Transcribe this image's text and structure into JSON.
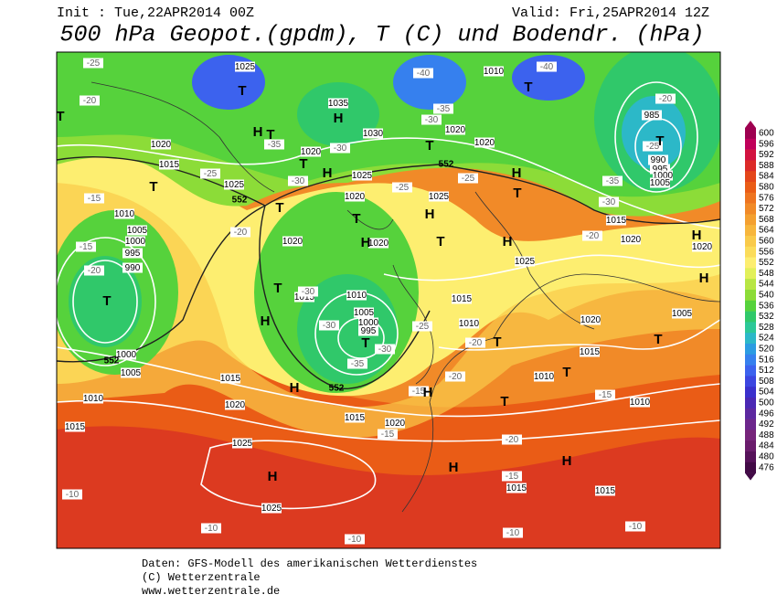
{
  "header": {
    "init": "Init : Tue,22APR2014 00Z",
    "valid": "Valid: Fri,25APR2014 12Z",
    "title": "500 hPa Geopot.(gpdm), T (C) und Bodendr. (hPa)"
  },
  "footer": {
    "source": "Daten: GFS-Modell des amerikanischen Wetterdienstes",
    "copyright": "(C) Wetterzentrale",
    "url": "www.wetterzentrale.de"
  },
  "colorbar": {
    "labels": [
      "600",
      "596",
      "592",
      "588",
      "584",
      "580",
      "576",
      "572",
      "568",
      "564",
      "560",
      "556",
      "552",
      "548",
      "544",
      "540",
      "536",
      "532",
      "528",
      "524",
      "520",
      "516",
      "512",
      "508",
      "504",
      "500",
      "496",
      "492",
      "488",
      "484",
      "480",
      "476"
    ],
    "colors": [
      "#9e0050",
      "#c0005a",
      "#d2123f",
      "#dc2a28",
      "#e4461a",
      "#ea5c16",
      "#ee7420",
      "#f18a28",
      "#f4a030",
      "#f7b63c",
      "#f9ca4a",
      "#fbdc5a",
      "#fdee70",
      "#e2f05a",
      "#b8e644",
      "#8cdc38",
      "#56d23c",
      "#30c86a",
      "#2cc898",
      "#2cb8c8",
      "#2c9ce2",
      "#3680ee",
      "#3c62ee",
      "#3c46e0",
      "#3a30cc",
      "#4a28b4",
      "#5c28a0",
      "#6c268c",
      "#76247a",
      "#6a1c6c",
      "#56125a",
      "#420a46"
    ]
  },
  "map": {
    "high_labels": [
      "H",
      "H",
      "H",
      "H",
      "H",
      "H",
      "H",
      "H",
      "H",
      "H",
      "H",
      "H",
      "H",
      "H",
      "H"
    ],
    "low_labels": [
      "T",
      "T",
      "T",
      "T",
      "T",
      "T",
      "T",
      "T",
      "T",
      "T",
      "T",
      "T",
      "T",
      "T",
      "T",
      "T",
      "T",
      "T",
      "T"
    ],
    "isobar_labels": [
      "1025",
      "1010",
      "1035",
      "1030",
      "1020",
      "1020",
      "1020",
      "1020",
      "1015",
      "1025",
      "1025",
      "1025",
      "1020",
      "1010",
      "1005",
      "1000",
      "995",
      "990",
      "1020",
      "1020",
      "1025",
      "1015",
      "1010",
      "1005",
      "1000",
      "995",
      "1015",
      "1010",
      "1020",
      "1005",
      "1015",
      "1010",
      "1010",
      "1000",
      "1005",
      "1015",
      "1010",
      "1020",
      "1015",
      "1020",
      "1015",
      "1025",
      "1025",
      "1015",
      "1015",
      "1015",
      "1020",
      "1020",
      "985",
      "990",
      "995",
      "1000",
      "1005"
    ],
    "temp_labels": [
      "-25",
      "-20",
      "-35",
      "-30",
      "-25",
      "-30",
      "-40",
      "-35",
      "-30",
      "-25",
      "-25",
      "-40",
      "-20",
      "-35",
      "-30",
      "-25",
      "-20",
      "-15",
      "-15",
      "-20",
      "-20",
      "-30",
      "-30",
      "-30",
      "-35",
      "-25",
      "-20",
      "-20",
      "-15",
      "-15",
      "-15",
      "-20",
      "-15",
      "-10",
      "-10",
      "-10",
      "-10",
      "-10"
    ],
    "geopot_labels": [
      "552",
      "552",
      "552",
      "552"
    ]
  }
}
